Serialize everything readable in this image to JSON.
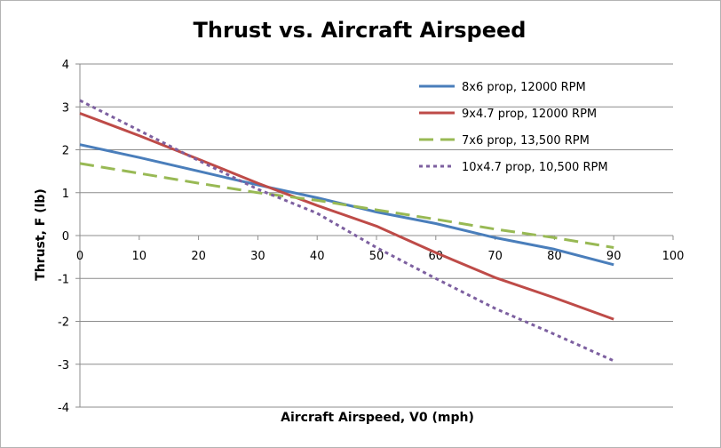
{
  "chart_data": {
    "type": "line",
    "title": "Thrust vs. Aircraft Airspeed",
    "xlabel": "Aircraft Airspeed, V0 (mph)",
    "ylabel": "Thrust, F (lb)",
    "xlim": [
      0,
      100
    ],
    "ylim": [
      -4,
      4
    ],
    "xticks": [
      0,
      10,
      20,
      30,
      40,
      50,
      60,
      70,
      80,
      90,
      100
    ],
    "yticks": [
      -4,
      -3,
      -2,
      -1,
      0,
      1,
      2,
      3,
      4
    ],
    "grid": "horizontal",
    "legend_position": "top-right",
    "series": [
      {
        "name": "8x6 prop, 12000 RPM",
        "color": "#4a7ebb",
        "dash": "solid",
        "x": [
          0,
          10,
          20,
          30,
          40,
          50,
          60,
          70,
          80,
          90
        ],
        "y": [
          2.12,
          1.82,
          1.5,
          1.18,
          0.88,
          0.55,
          0.28,
          -0.05,
          -0.32,
          -0.68
        ]
      },
      {
        "name": "9x4.7 prop, 12000 RPM",
        "color": "#be4b48",
        "dash": "solid",
        "x": [
          0,
          10,
          20,
          30,
          40,
          50,
          60,
          70,
          80,
          90
        ],
        "y": [
          2.85,
          2.33,
          1.78,
          1.22,
          0.7,
          0.22,
          -0.4,
          -0.98,
          -1.45,
          -1.95
        ]
      },
      {
        "name": "7x6 prop, 13,500 RPM",
        "color": "#98b954",
        "dash": "long-dash",
        "x": [
          0,
          10,
          20,
          30,
          40,
          50,
          60,
          70,
          80,
          90
        ],
        "y": [
          1.68,
          1.45,
          1.22,
          1.0,
          0.82,
          0.6,
          0.38,
          0.15,
          -0.05,
          -0.28
        ]
      },
      {
        "name": "10x4.7 prop, 10,500 RPM",
        "color": "#7d60a0",
        "dash": "dotted",
        "x": [
          0,
          10,
          20,
          30,
          40,
          50,
          60,
          70,
          80,
          90
        ],
        "y": [
          3.15,
          2.45,
          1.75,
          1.08,
          0.52,
          -0.28,
          -1.0,
          -1.7,
          -2.3,
          -2.92
        ]
      }
    ]
  }
}
